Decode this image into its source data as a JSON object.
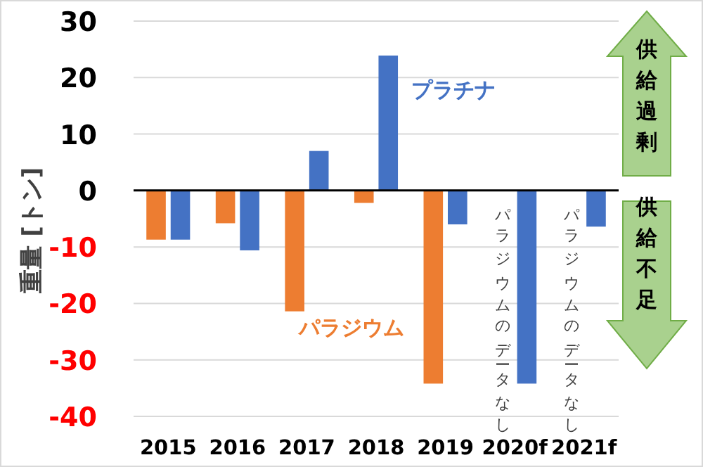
{
  "chart_data": {
    "type": "bar",
    "ylabel": "重量 [トン]",
    "categories": [
      "2015",
      "2016",
      "2017",
      "2018",
      "2019",
      "2020f",
      "2021f"
    ],
    "series": [
      {
        "name": "パラジウム",
        "color": "#ed7d31",
        "values": [
          -8.7,
          -5.8,
          -21.4,
          -2.2,
          -34.2,
          null,
          null
        ]
      },
      {
        "name": "プラチナ",
        "color": "#4472c4",
        "values": [
          -8.7,
          -10.6,
          7,
          23.9,
          -6,
          -34.2,
          -6.4
        ]
      }
    ],
    "ylim": [
      -40,
      30
    ],
    "yticks": [
      -40,
      -30,
      -20,
      -10,
      0,
      10,
      20,
      30
    ],
    "grid": "y",
    "legend": false,
    "annotations": [
      {
        "text": "パラジウムのデータなし",
        "x": "2020f",
        "y": 0
      },
      {
        "text": "パラジウムのデータなし",
        "x": "2021f",
        "y": 0
      },
      "供給過剰",
      "供給不足"
    ]
  }
}
